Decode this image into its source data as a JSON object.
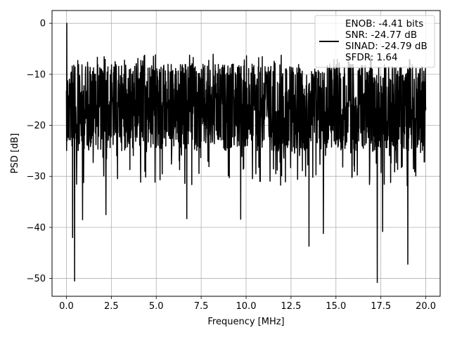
{
  "chart_data": {
    "type": "line",
    "xlabel": "Frequency [MHz]",
    "ylabel": "PSD [dB]",
    "xlim": [
      -0.8,
      20.8
    ],
    "ylim": [
      -53.5,
      2.5
    ],
    "xticks": [
      0.0,
      2.5,
      5.0,
      7.5,
      10.0,
      12.5,
      15.0,
      17.5,
      20.0
    ],
    "xtick_labels": [
      "0.0",
      "2.5",
      "5.0",
      "7.5",
      "10.0",
      "12.5",
      "15.0",
      "17.5",
      "20.0"
    ],
    "yticks": [
      0,
      -10,
      -20,
      -30,
      -40,
      -50
    ],
    "ytick_labels": [
      "0",
      "−10",
      "−20",
      "−30",
      "−40",
      "−50"
    ],
    "grid": true,
    "legend": {
      "placement": "upper-right",
      "lines": [
        "ENOB: -4.41 bits",
        "SNR: -24.77 dB",
        "SINAD: -24.79 dB",
        "SFDR: 1.64"
      ]
    },
    "series": [
      {
        "color": "#000000",
        "style": "dense-noise-spectrum",
        "x_range": [
          0.0,
          20.0
        ],
        "typical_range": [
          -25.0,
          -8.0
        ],
        "peaks": [
          {
            "x": 0.02,
            "y": 0.0
          },
          {
            "x": 0.35,
            "y": -42.0
          },
          {
            "x": 0.45,
            "y": -50.5
          },
          {
            "x": 0.9,
            "y": -38.5
          },
          {
            "x": 2.2,
            "y": -37.5
          },
          {
            "x": 6.7,
            "y": -38.3
          },
          {
            "x": 9.7,
            "y": -38.4
          },
          {
            "x": 13.5,
            "y": -43.7
          },
          {
            "x": 14.3,
            "y": -41.2
          },
          {
            "x": 17.3,
            "y": -50.8
          },
          {
            "x": 17.6,
            "y": -40.8
          },
          {
            "x": 19.0,
            "y": -47.2
          }
        ]
      }
    ]
  }
}
